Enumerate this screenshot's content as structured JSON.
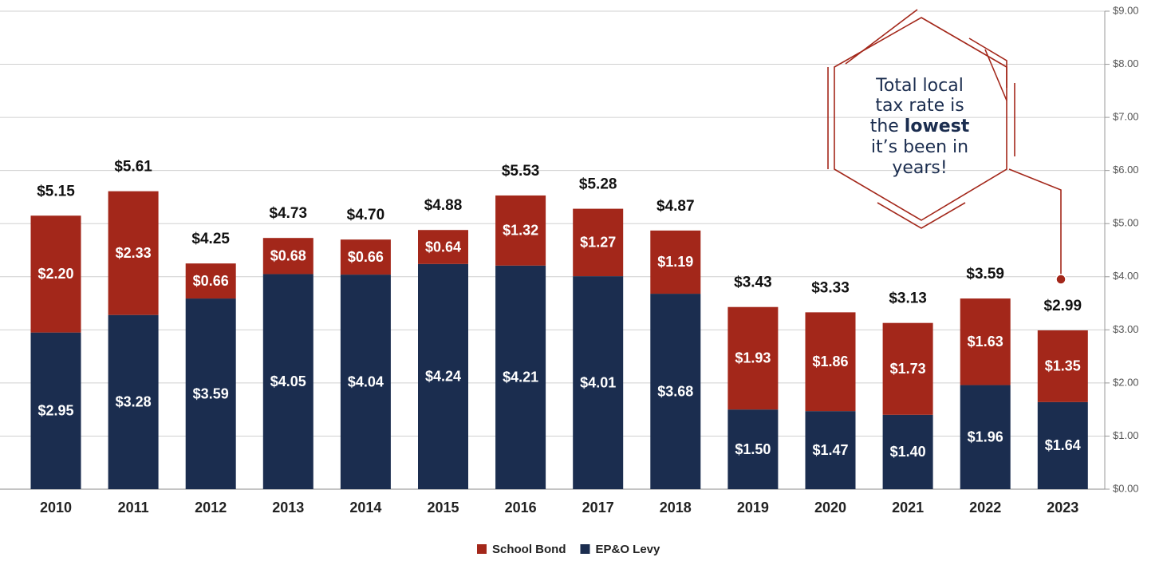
{
  "chart_data": {
    "type": "stacked_bar",
    "categories": [
      "2010",
      "2011",
      "2012",
      "2013",
      "2014",
      "2015",
      "2016",
      "2017",
      "2018",
      "2019",
      "2020",
      "2021",
      "2022",
      "2023"
    ],
    "series": [
      {
        "name": "School Bond",
        "color": "#a3271a",
        "values": [
          2.2,
          2.33,
          0.66,
          0.68,
          0.66,
          0.64,
          1.32,
          1.27,
          1.19,
          1.93,
          1.86,
          1.73,
          1.63,
          1.35
        ],
        "value_labels": [
          "$2.20",
          "$2.33",
          "$0.66",
          "$0.68",
          "$0.66",
          "$0.64",
          "$1.32",
          "$1.27",
          "$1.19",
          "$1.93",
          "$1.86",
          "$1.73",
          "$1.63",
          "$1.35"
        ]
      },
      {
        "name": "EP&O Levy",
        "color": "#1b2d4f",
        "values": [
          2.95,
          3.28,
          3.59,
          4.05,
          4.04,
          4.24,
          4.21,
          4.01,
          3.68,
          1.5,
          1.47,
          1.4,
          1.96,
          1.64
        ],
        "value_labels": [
          "$2.95",
          "$3.28",
          "$3.59",
          "$4.05",
          "$4.04",
          "$4.24",
          "$4.21",
          "$4.01",
          "$3.68",
          "$1.50",
          "$1.47",
          "$1.40",
          "$1.96",
          "$1.64"
        ]
      }
    ],
    "totals": [
      5.15,
      5.61,
      4.25,
      4.73,
      4.7,
      4.88,
      5.53,
      5.28,
      4.87,
      3.43,
      3.33,
      3.13,
      3.59,
      2.99
    ],
    "total_labels": [
      "$5.15",
      "$5.61",
      "$4.25",
      "$4.73",
      "$4.70",
      "$4.88",
      "$5.53",
      "$5.28",
      "$4.87",
      "$3.43",
      "$3.33",
      "$3.13",
      "$3.59",
      "$2.99"
    ],
    "ylim": [
      0,
      9
    ],
    "yticks": [
      {
        "value": 0,
        "label": "$0.00"
      },
      {
        "value": 1,
        "label": "$1.00"
      },
      {
        "value": 2,
        "label": "$2.00"
      },
      {
        "value": 3,
        "label": "$3.00"
      },
      {
        "value": 4,
        "label": "$4.00"
      },
      {
        "value": 5,
        "label": "$5.00"
      },
      {
        "value": 6,
        "label": "$6.00"
      },
      {
        "value": 7,
        "label": "$7.00"
      },
      {
        "value": 8,
        "label": "$8.00"
      },
      {
        "value": 9,
        "label": "$9.00"
      }
    ],
    "grid": true,
    "annotation": [
      [
        "Total local"
      ],
      [
        "tax rate is"
      ],
      [
        "the ",
        "lowest"
      ],
      [
        "it’s been in"
      ],
      [
        "years!"
      ]
    ]
  }
}
